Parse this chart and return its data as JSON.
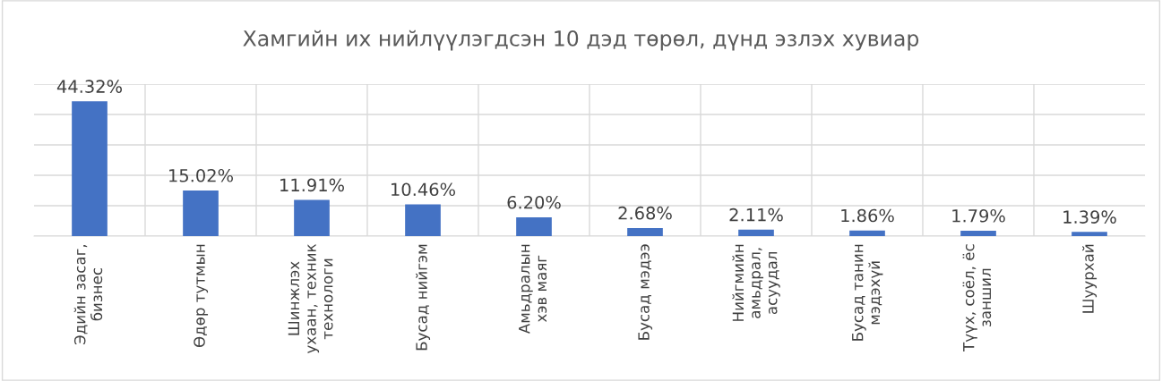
{
  "chart_data": {
    "type": "bar",
    "title": "Хамгийн их нийлүүлэгдсэн 10 дэд төрөл, дүнд эзлэх хувиар",
    "categories": [
      "Эдийн засаг,\nбизнес",
      "Өдөр тутмын",
      "Шинжлэх\nухаан, техник\nтехнологи",
      "Бусад нийгэм",
      "Амьдралын\nхэв маяг",
      "Бусад мэдээ",
      "Нийгмийн\nамьдрал,\nасуудал",
      "Бусад танин\nмэдэхүй",
      "Түүх, соёл, ёс\nзаншил",
      "Шуурхай"
    ],
    "values": [
      44.32,
      15.02,
      11.91,
      10.46,
      6.2,
      2.68,
      2.11,
      1.86,
      1.79,
      1.39
    ],
    "value_labels": [
      "44.32%",
      "15.02%",
      "11.91%",
      "10.46%",
      "6.20%",
      "2.68%",
      "2.11%",
      "1.86%",
      "1.79%",
      "1.39%"
    ],
    "color": "#4472c4",
    "ylim": [
      0,
      50
    ],
    "yticks": [
      {
        "value": 0,
        "label": null
      },
      {
        "value": 10,
        "label": null
      },
      {
        "value": 20,
        "label": null
      },
      {
        "value": 30,
        "label": null
      },
      {
        "value": 40,
        "label": null
      },
      {
        "value": 50,
        "label": null
      }
    ],
    "tick_labels": "x",
    "grid": true,
    "legend": false
  }
}
